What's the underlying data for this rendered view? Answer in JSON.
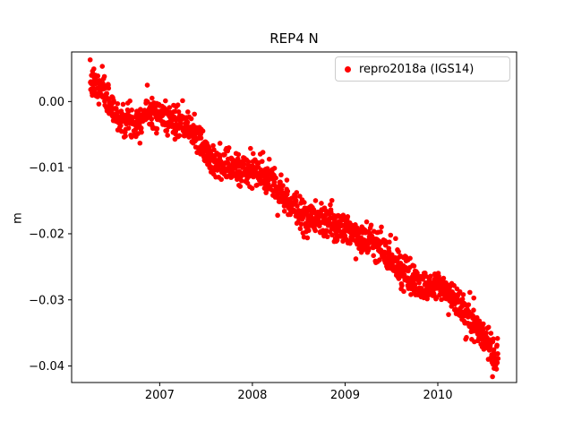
{
  "chart_data": {
    "type": "scatter",
    "title": "REP4 N",
    "xlabel": "",
    "ylabel": "m",
    "xlim": [
      2006.05,
      2010.85
    ],
    "ylim": [
      -0.0425,
      0.0075
    ],
    "xticks": [
      2007,
      2008,
      2009,
      2010
    ],
    "xtick_labels": [
      "2007",
      "2008",
      "2009",
      "2010"
    ],
    "yticks": [
      0.0,
      -0.01,
      -0.02,
      -0.03,
      -0.04
    ],
    "ytick_labels": [
      "0.00",
      "−0.01",
      "−0.02",
      "−0.03",
      "−0.04"
    ],
    "grid": false,
    "legend_position": "upper right",
    "series": [
      {
        "name": "repro2018a (IGS14)",
        "color": "#ff0000",
        "marker": "dot",
        "marker_radius_px": 2.8,
        "n_points": 1550,
        "x_start": 2006.25,
        "x_end": 2010.65,
        "noise_std": 0.0012,
        "seed": 7,
        "trend_anchors": [
          [
            2006.25,
            0.003
          ],
          [
            2006.4,
            0.0015
          ],
          [
            2006.55,
            -0.0025
          ],
          [
            2006.75,
            -0.003
          ],
          [
            2006.9,
            -0.001
          ],
          [
            2007.0,
            -0.002
          ],
          [
            2007.15,
            -0.003
          ],
          [
            2007.35,
            -0.0045
          ],
          [
            2007.55,
            -0.0085
          ],
          [
            2007.75,
            -0.01
          ],
          [
            2008.05,
            -0.0105
          ],
          [
            2008.25,
            -0.0125
          ],
          [
            2008.45,
            -0.016
          ],
          [
            2008.6,
            -0.018
          ],
          [
            2008.85,
            -0.0185
          ],
          [
            2009.05,
            -0.0195
          ],
          [
            2009.25,
            -0.021
          ],
          [
            2009.45,
            -0.023
          ],
          [
            2009.65,
            -0.026
          ],
          [
            2009.85,
            -0.028
          ],
          [
            2010.05,
            -0.028
          ],
          [
            2010.2,
            -0.03
          ],
          [
            2010.35,
            -0.033
          ],
          [
            2010.5,
            -0.036
          ],
          [
            2010.65,
            -0.039
          ]
        ]
      }
    ]
  }
}
